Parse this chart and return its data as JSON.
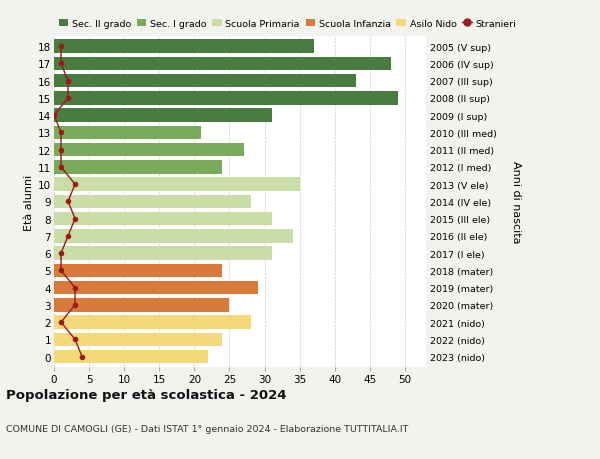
{
  "ages": [
    18,
    17,
    16,
    15,
    14,
    13,
    12,
    11,
    10,
    9,
    8,
    7,
    6,
    5,
    4,
    3,
    2,
    1,
    0
  ],
  "bar_values": [
    37,
    48,
    43,
    49,
    31,
    21,
    27,
    24,
    35,
    28,
    31,
    34,
    31,
    24,
    29,
    25,
    28,
    24,
    22
  ],
  "stranieri_values": [
    1,
    1,
    2,
    2,
    0,
    1,
    1,
    1,
    3,
    2,
    3,
    2,
    1,
    1,
    3,
    3,
    1,
    3,
    4
  ],
  "right_labels": [
    "2005 (V sup)",
    "2006 (IV sup)",
    "2007 (III sup)",
    "2008 (II sup)",
    "2009 (I sup)",
    "2010 (III med)",
    "2011 (II med)",
    "2012 (I med)",
    "2013 (V ele)",
    "2014 (IV ele)",
    "2015 (III ele)",
    "2016 (II ele)",
    "2017 (I ele)",
    "2018 (mater)",
    "2019 (mater)",
    "2020 (mater)",
    "2021 (nido)",
    "2022 (nido)",
    "2023 (nido)"
  ],
  "bar_colors": [
    "#4a7c3f",
    "#4a7c3f",
    "#4a7c3f",
    "#4a7c3f",
    "#4a7c3f",
    "#7aab5a",
    "#7aab5a",
    "#7aab5a",
    "#c8dda8",
    "#c8dda8",
    "#c8dda8",
    "#c8dda8",
    "#c8dda8",
    "#d9793a",
    "#d9793a",
    "#d9793a",
    "#f5d87a",
    "#f5d87a",
    "#f5d87a"
  ],
  "stranieri_color": "#9b1a1a",
  "legend_labels": [
    "Sec. II grado",
    "Sec. I grado",
    "Scuola Primaria",
    "Scuola Infanzia",
    "Asilo Nido",
    "Stranieri"
  ],
  "legend_colors": [
    "#4a7c3f",
    "#7aab5a",
    "#c8dda8",
    "#d9793a",
    "#f5d87a",
    "#9b1a1a"
  ],
  "title": "Popolazione per età scolastica - 2024",
  "subtitle": "COMUNE DI CAMOGLI (GE) - Dati ISTAT 1° gennaio 2024 - Elaborazione TUTTITALIA.IT",
  "ylabel": "Età alunni",
  "right_ylabel": "Anni di nascita",
  "xlabel_values": [
    0,
    5,
    10,
    15,
    20,
    25,
    30,
    35,
    40,
    45,
    50
  ],
  "xlim": [
    0,
    53
  ],
  "background_color": "#f2f2ee",
  "plot_bg_color": "#ffffff"
}
